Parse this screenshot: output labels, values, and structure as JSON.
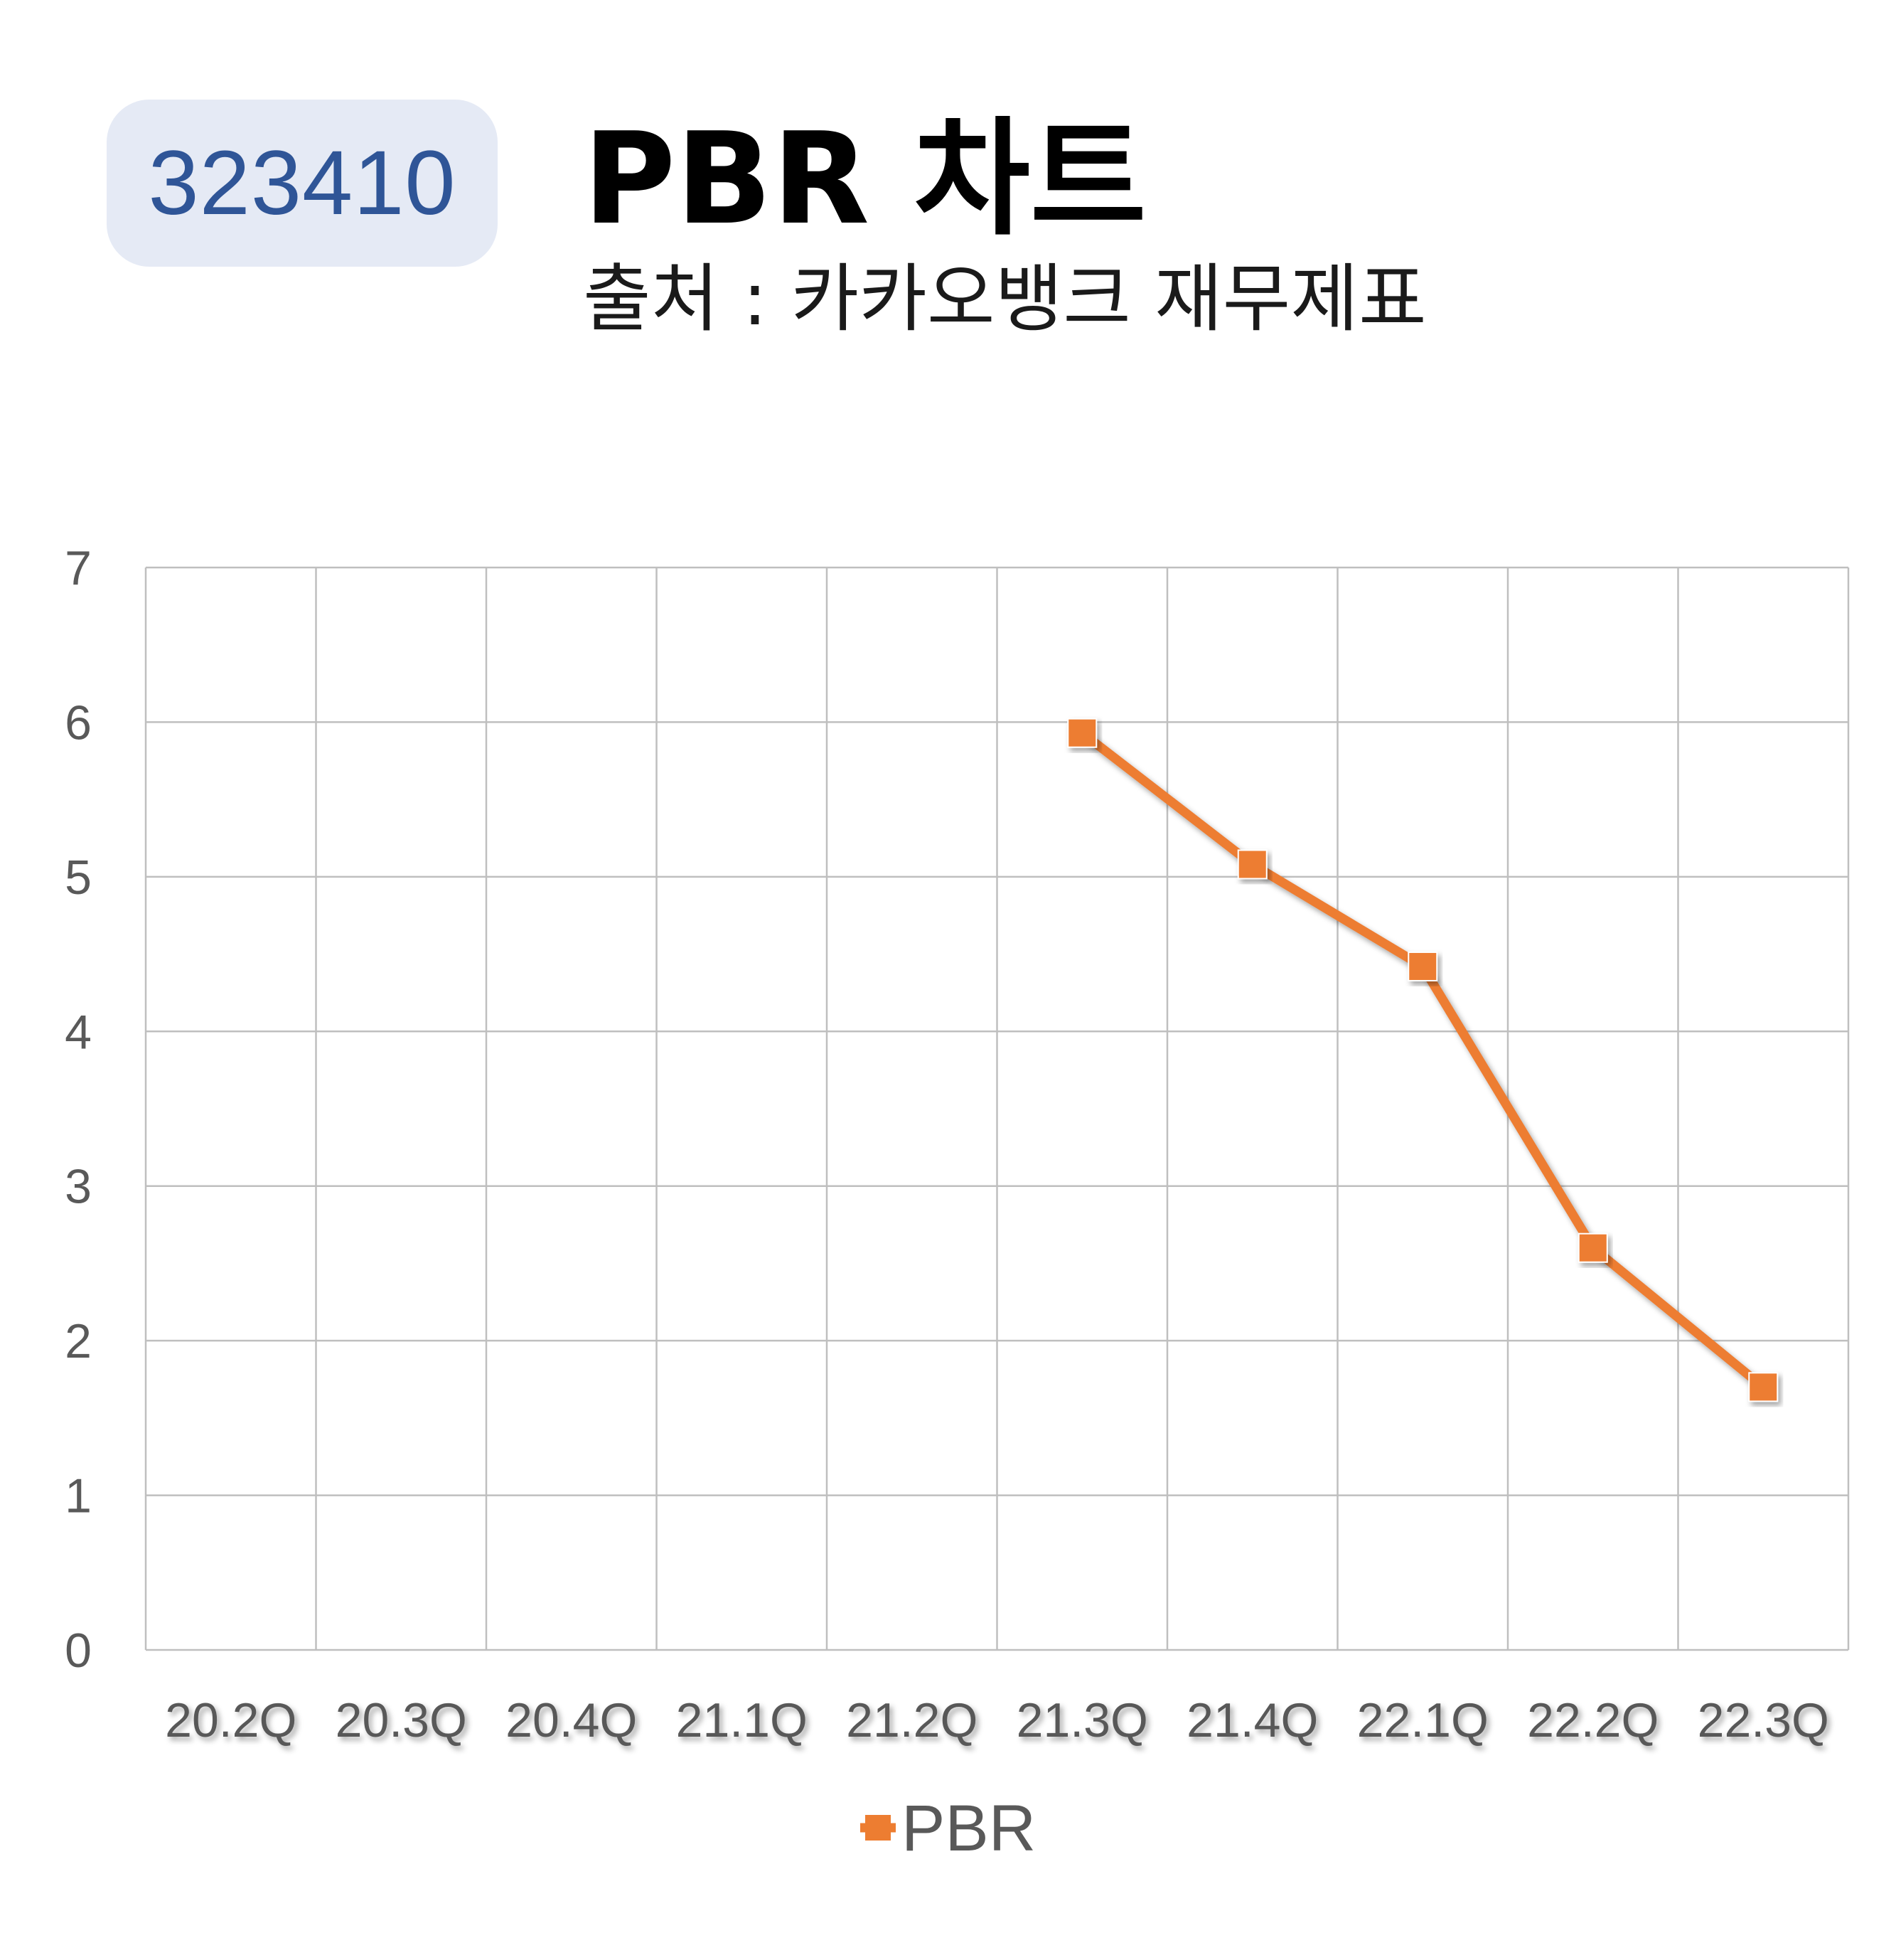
{
  "header": {
    "code": "323410",
    "title": "PBR 차트",
    "subtitle": "출처 : 카카오뱅크 재무제표"
  },
  "colors": {
    "badge_bg": "#e5eaf5",
    "badge_text": "#2f5597",
    "series": "#ed7d31",
    "grid": "#bfbfbf",
    "tick_text": "#595959"
  },
  "chart_data": {
    "type": "line",
    "title": "PBR 차트",
    "categories": [
      "20.2Q",
      "20.3Q",
      "20.4Q",
      "21.1Q",
      "21.2Q",
      "21.3Q",
      "21.4Q",
      "22.1Q",
      "22.2Q",
      "22.3Q"
    ],
    "series": [
      {
        "name": "PBR",
        "values": [
          null,
          null,
          null,
          null,
          null,
          5.93,
          5.08,
          4.42,
          2.6,
          1.7
        ],
        "marker": "square"
      }
    ],
    "ylim": [
      0,
      7
    ],
    "yticks": [
      "0",
      "1",
      "2",
      "3",
      "4",
      "5",
      "6",
      "7"
    ],
    "grid": true,
    "legend": "bottom-center",
    "xlabel": "",
    "ylabel": ""
  }
}
